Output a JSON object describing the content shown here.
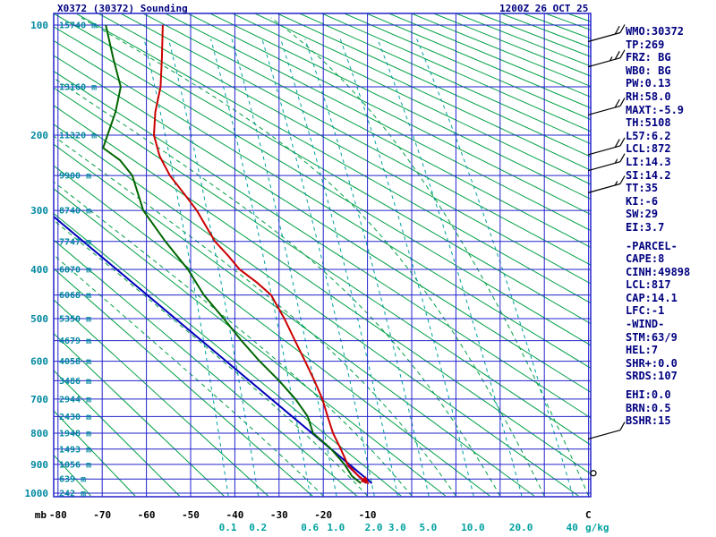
{
  "colors": {
    "background": "#ffffff",
    "grid_blue": "#2222cc",
    "adiabat_green": "#00a044",
    "mixing_teal": "#00a0a0",
    "label_teal": "#0088a0",
    "text_navy": "#000080",
    "temperature": "#cc0000",
    "dewpoint": "#006600",
    "parcel": "#0000bb",
    "wetbulb": "#990099",
    "barb_black": "#000000"
  },
  "chart_data": {
    "type": "line",
    "variant": "stuve-sounding",
    "title": "X0372 (30372) Sounding",
    "datetime": "1200Z 26 OCT 25",
    "axes": {
      "pressure": {
        "unit": "mb",
        "ticks": [
          100,
          200,
          300,
          400,
          500,
          600,
          700,
          800,
          900,
          1000
        ]
      },
      "temperature": {
        "unit": "C",
        "ticks": [
          -80,
          -70,
          -60,
          -50,
          -40,
          -30,
          -20,
          -10
        ]
      },
      "mixing_ratio": {
        "unit": "g/kg",
        "ticks": [
          0.1,
          0.2,
          0.6,
          1.0,
          2.0,
          3.0,
          5.0,
          10.0,
          20.0,
          40
        ]
      }
    },
    "heights": [
      {
        "p": 100,
        "label": "15740 m"
      },
      {
        "p": 150,
        "label": "13160 m"
      },
      {
        "p": 200,
        "label": "11320 m"
      },
      {
        "p": 250,
        "label": "9900 m"
      },
      {
        "p": 300,
        "label": "8740 m"
      },
      {
        "p": 350,
        "label": "7747 m"
      },
      {
        "p": 400,
        "label": "6870 m"
      },
      {
        "p": 450,
        "label": "6068 m"
      },
      {
        "p": 500,
        "label": "5350 m"
      },
      {
        "p": 550,
        "label": "4679 m"
      },
      {
        "p": 600,
        "label": "4058 m"
      },
      {
        "p": 650,
        "label": "3486 m"
      },
      {
        "p": 700,
        "label": "2944 m"
      },
      {
        "p": 750,
        "label": "2430 m"
      },
      {
        "p": 800,
        "label": "1948 m"
      },
      {
        "p": 850,
        "label": "1493 m"
      },
      {
        "p": 900,
        "label": "1056 m"
      },
      {
        "p": 950,
        "label": "639 m"
      },
      {
        "p": 1000,
        "label": "242 m"
      }
    ],
    "series": [
      {
        "name": "temperature",
        "color_key": "temperature",
        "points": [
          [
            965,
            -9.8
          ],
          [
            940,
            -12
          ],
          [
            900,
            -14.5
          ],
          [
            845,
            -16.2
          ],
          [
            800,
            -17.8
          ],
          [
            750,
            -19
          ],
          [
            700,
            -20.2
          ],
          [
            650,
            -22
          ],
          [
            600,
            -24.1
          ],
          [
            550,
            -26.4
          ],
          [
            500,
            -28.8
          ],
          [
            450,
            -31.8
          ],
          [
            425,
            -35
          ],
          [
            400,
            -38.9
          ],
          [
            375,
            -41.5
          ],
          [
            350,
            -44.5
          ],
          [
            325,
            -46.5
          ],
          [
            300,
            -48.6
          ],
          [
            275,
            -51.5
          ],
          [
            250,
            -54.7
          ],
          [
            225,
            -57
          ],
          [
            200,
            -58.3
          ],
          [
            175,
            -58
          ],
          [
            150,
            -56.8
          ],
          [
            125,
            -56.5
          ],
          [
            100,
            -56.3
          ]
        ]
      },
      {
        "name": "dewpoint",
        "color_key": "dewpoint",
        "points": [
          [
            965,
            -11.5
          ],
          [
            940,
            -13.5
          ],
          [
            900,
            -15.2
          ],
          [
            850,
            -18.2
          ],
          [
            800,
            -22.3
          ],
          [
            750,
            -23.5
          ],
          [
            700,
            -26.3
          ],
          [
            650,
            -30
          ],
          [
            600,
            -34.4
          ],
          [
            550,
            -38.5
          ],
          [
            500,
            -42.5
          ],
          [
            450,
            -47
          ],
          [
            400,
            -50.6
          ],
          [
            350,
            -55.7
          ],
          [
            300,
            -60.7
          ],
          [
            250,
            -63.2
          ],
          [
            230,
            -66
          ],
          [
            215,
            -69.8
          ],
          [
            200,
            -68.8
          ],
          [
            175,
            -67
          ],
          [
            150,
            -65.8
          ],
          [
            125,
            -67.5
          ],
          [
            100,
            -69.2
          ]
        ]
      },
      {
        "name": "parcel",
        "color_key": "parcel",
        "points": [
          [
            965,
            -9
          ],
          [
            298,
            -83
          ]
        ]
      },
      {
        "name": "wetbulb",
        "color_key": "wetbulb",
        "points": [
          [
            965,
            -10.3
          ],
          [
            903,
            -14.6
          ]
        ]
      }
    ],
    "wind_barbs": [
      {
        "p": 110,
        "kt": 20
      },
      {
        "p": 130,
        "kt": 25
      },
      {
        "p": 175,
        "kt": 20
      },
      {
        "p": 220,
        "kt": 20
      },
      {
        "p": 240,
        "kt": 15
      },
      {
        "p": 270,
        "kt": 15
      },
      {
        "p": 810,
        "kt": 10
      },
      {
        "p": 930,
        "kt": 0
      }
    ],
    "grid": {
      "isobar_step_mb": 50,
      "isotherm": {
        "min": -80,
        "max": 40,
        "step": 10
      },
      "dry_adiabat_theta_k": {
        "min": 190,
        "max": 620,
        "step": 10
      },
      "moist_adiabat_start_c": [
        -20,
        -10,
        0,
        10,
        20,
        30,
        40
      ],
      "mixing_lines_gkg": [
        0.1,
        0.2,
        0.6,
        1.0,
        2.0,
        3.0,
        5.0,
        10.0,
        20.0,
        40
      ]
    }
  },
  "params_panel": {
    "lines": [
      "WMO:30372",
      "TP:269",
      "FRZ: BG",
      "WB0: BG",
      "PW:0.13",
      "RH:58.0",
      "MAXT:-5.9",
      "TH:5108",
      "L57:6.2",
      "LCL:872",
      "LI:14.3",
      "SI:14.2",
      "TT:35",
      "KI:-6",
      "SW:29",
      "EI:3.7",
      "",
      "-PARCEL-",
      "CAPE:8",
      "CINH:49898",
      "LCL:817",
      "CAP:14.1",
      "LFC:-1",
      "-WIND-",
      "STM:63/9",
      "HEL:7",
      "SHR+:0.0",
      "SRDS:107",
      "",
      "EHI:0.0",
      "BRN:0.5",
      "BSHR:15"
    ]
  }
}
